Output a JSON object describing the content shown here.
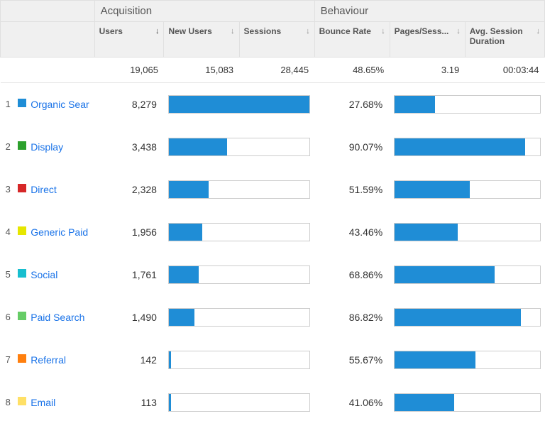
{
  "colors": {
    "bar": "#1f8dd6",
    "link": "#1a73e8",
    "header_bg": "#f0f0f0",
    "header_border": "#e0e0e0",
    "bar_border": "#cccccc"
  },
  "group_headers": {
    "acquisition": "Acquisition",
    "behaviour": "Behaviour"
  },
  "columns": {
    "users": "Users",
    "new_users": "New Users",
    "sessions": "Sessions",
    "bounce_rate": "Bounce Rate",
    "pages_sess": "Pages/Sess...",
    "avg_session": "Avg. Session Duration"
  },
  "sorted_column": "users",
  "totals": {
    "users": "19,065",
    "new_users": "15,083",
    "sessions": "28,445",
    "bounce_rate": "48.65%",
    "pages_sess": "3.19",
    "avg_session": "00:03:44"
  },
  "max_users": 8279,
  "rows": [
    {
      "idx": "1",
      "swatch": "#1f8dd6",
      "name": "Organic Sear",
      "users_text": "8,279",
      "users_val": 8279,
      "bounce_text": "27.68%",
      "bounce_val": 27.68
    },
    {
      "idx": "2",
      "swatch": "#2ca02c",
      "name": "Display",
      "users_text": "3,438",
      "users_val": 3438,
      "bounce_text": "90.07%",
      "bounce_val": 90.07
    },
    {
      "idx": "3",
      "swatch": "#d62728",
      "name": "Direct",
      "users_text": "2,328",
      "users_val": 2328,
      "bounce_text": "51.59%",
      "bounce_val": 51.59
    },
    {
      "idx": "4",
      "swatch": "#e6e600",
      "name": "Generic Paid",
      "users_text": "1,956",
      "users_val": 1956,
      "bounce_text": "43.46%",
      "bounce_val": 43.46
    },
    {
      "idx": "5",
      "swatch": "#17becf",
      "name": "Social",
      "users_text": "1,761",
      "users_val": 1761,
      "bounce_text": "68.86%",
      "bounce_val": 68.86
    },
    {
      "idx": "6",
      "swatch": "#66cc66",
      "name": "Paid Search",
      "users_text": "1,490",
      "users_val": 1490,
      "bounce_text": "86.82%",
      "bounce_val": 86.82
    },
    {
      "idx": "7",
      "swatch": "#ff7f0e",
      "name": "Referral",
      "users_text": "142",
      "users_val": 142,
      "bounce_text": "55.67%",
      "bounce_val": 55.67
    },
    {
      "idx": "8",
      "swatch": "#ffe066",
      "name": "Email",
      "users_text": "113",
      "users_val": 113,
      "bounce_text": "41.06%",
      "bounce_val": 41.06
    }
  ]
}
